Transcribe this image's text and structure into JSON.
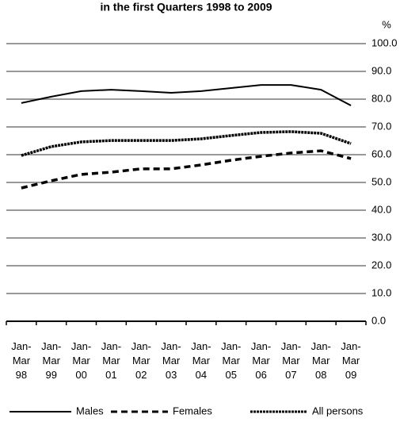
{
  "chart_data": {
    "type": "line",
    "title": "in the first Quarters 1998 to 2009",
    "y_label": "%",
    "categories": [
      [
        "Jan-",
        "Mar",
        "98"
      ],
      [
        "Jan-",
        "Mar",
        "99"
      ],
      [
        "Jan-",
        "Mar",
        "00"
      ],
      [
        "Jan-",
        "Mar",
        "01"
      ],
      [
        "Jan-",
        "Mar",
        "02"
      ],
      [
        "Jan-",
        "Mar",
        "03"
      ],
      [
        "Jan-",
        "Mar",
        "04"
      ],
      [
        "Jan-",
        "Mar",
        "05"
      ],
      [
        "Jan-",
        "Mar",
        "06"
      ],
      [
        "Jan-",
        "Mar",
        "07"
      ],
      [
        "Jan-",
        "Mar",
        "08"
      ],
      [
        "Jan-",
        "Mar",
        "09"
      ]
    ],
    "series": [
      {
        "name": "Males",
        "color": "#000000",
        "line_style": "solid",
        "values": [
          78.6,
          80.9,
          82.9,
          83.4,
          82.9,
          82.3,
          82.9,
          84.0,
          85.1,
          85.1,
          83.4,
          77.7
        ]
      },
      {
        "name": "Females",
        "color": "#000000",
        "line_style": "dashed",
        "values": [
          48.0,
          50.6,
          52.9,
          53.7,
          54.9,
          54.9,
          56.3,
          58.0,
          59.4,
          60.6,
          61.4,
          58.6
        ]
      },
      {
        "name": "All persons",
        "color": "#000000",
        "line_style": "dotted",
        "values": [
          59.7,
          62.9,
          64.6,
          65.1,
          65.1,
          65.1,
          65.7,
          66.9,
          68.0,
          68.3,
          67.7,
          64.0
        ]
      }
    ],
    "ylim": [
      0,
      100
    ],
    "yticks": [
      {
        "value": 0,
        "label": "0.0"
      },
      {
        "value": 10,
        "label": "10.0"
      },
      {
        "value": 20,
        "label": "20.0"
      },
      {
        "value": 30,
        "label": "30.0"
      },
      {
        "value": 40,
        "label": "40.0"
      },
      {
        "value": 50,
        "label": "50.0"
      },
      {
        "value": 60,
        "label": "60.0"
      },
      {
        "value": 70,
        "label": "70.0"
      },
      {
        "value": 80,
        "label": "80.0"
      },
      {
        "value": 90,
        "label": "90.0"
      },
      {
        "value": 100,
        "label": "100.0"
      }
    ],
    "grid": true,
    "legend": "bottom"
  }
}
